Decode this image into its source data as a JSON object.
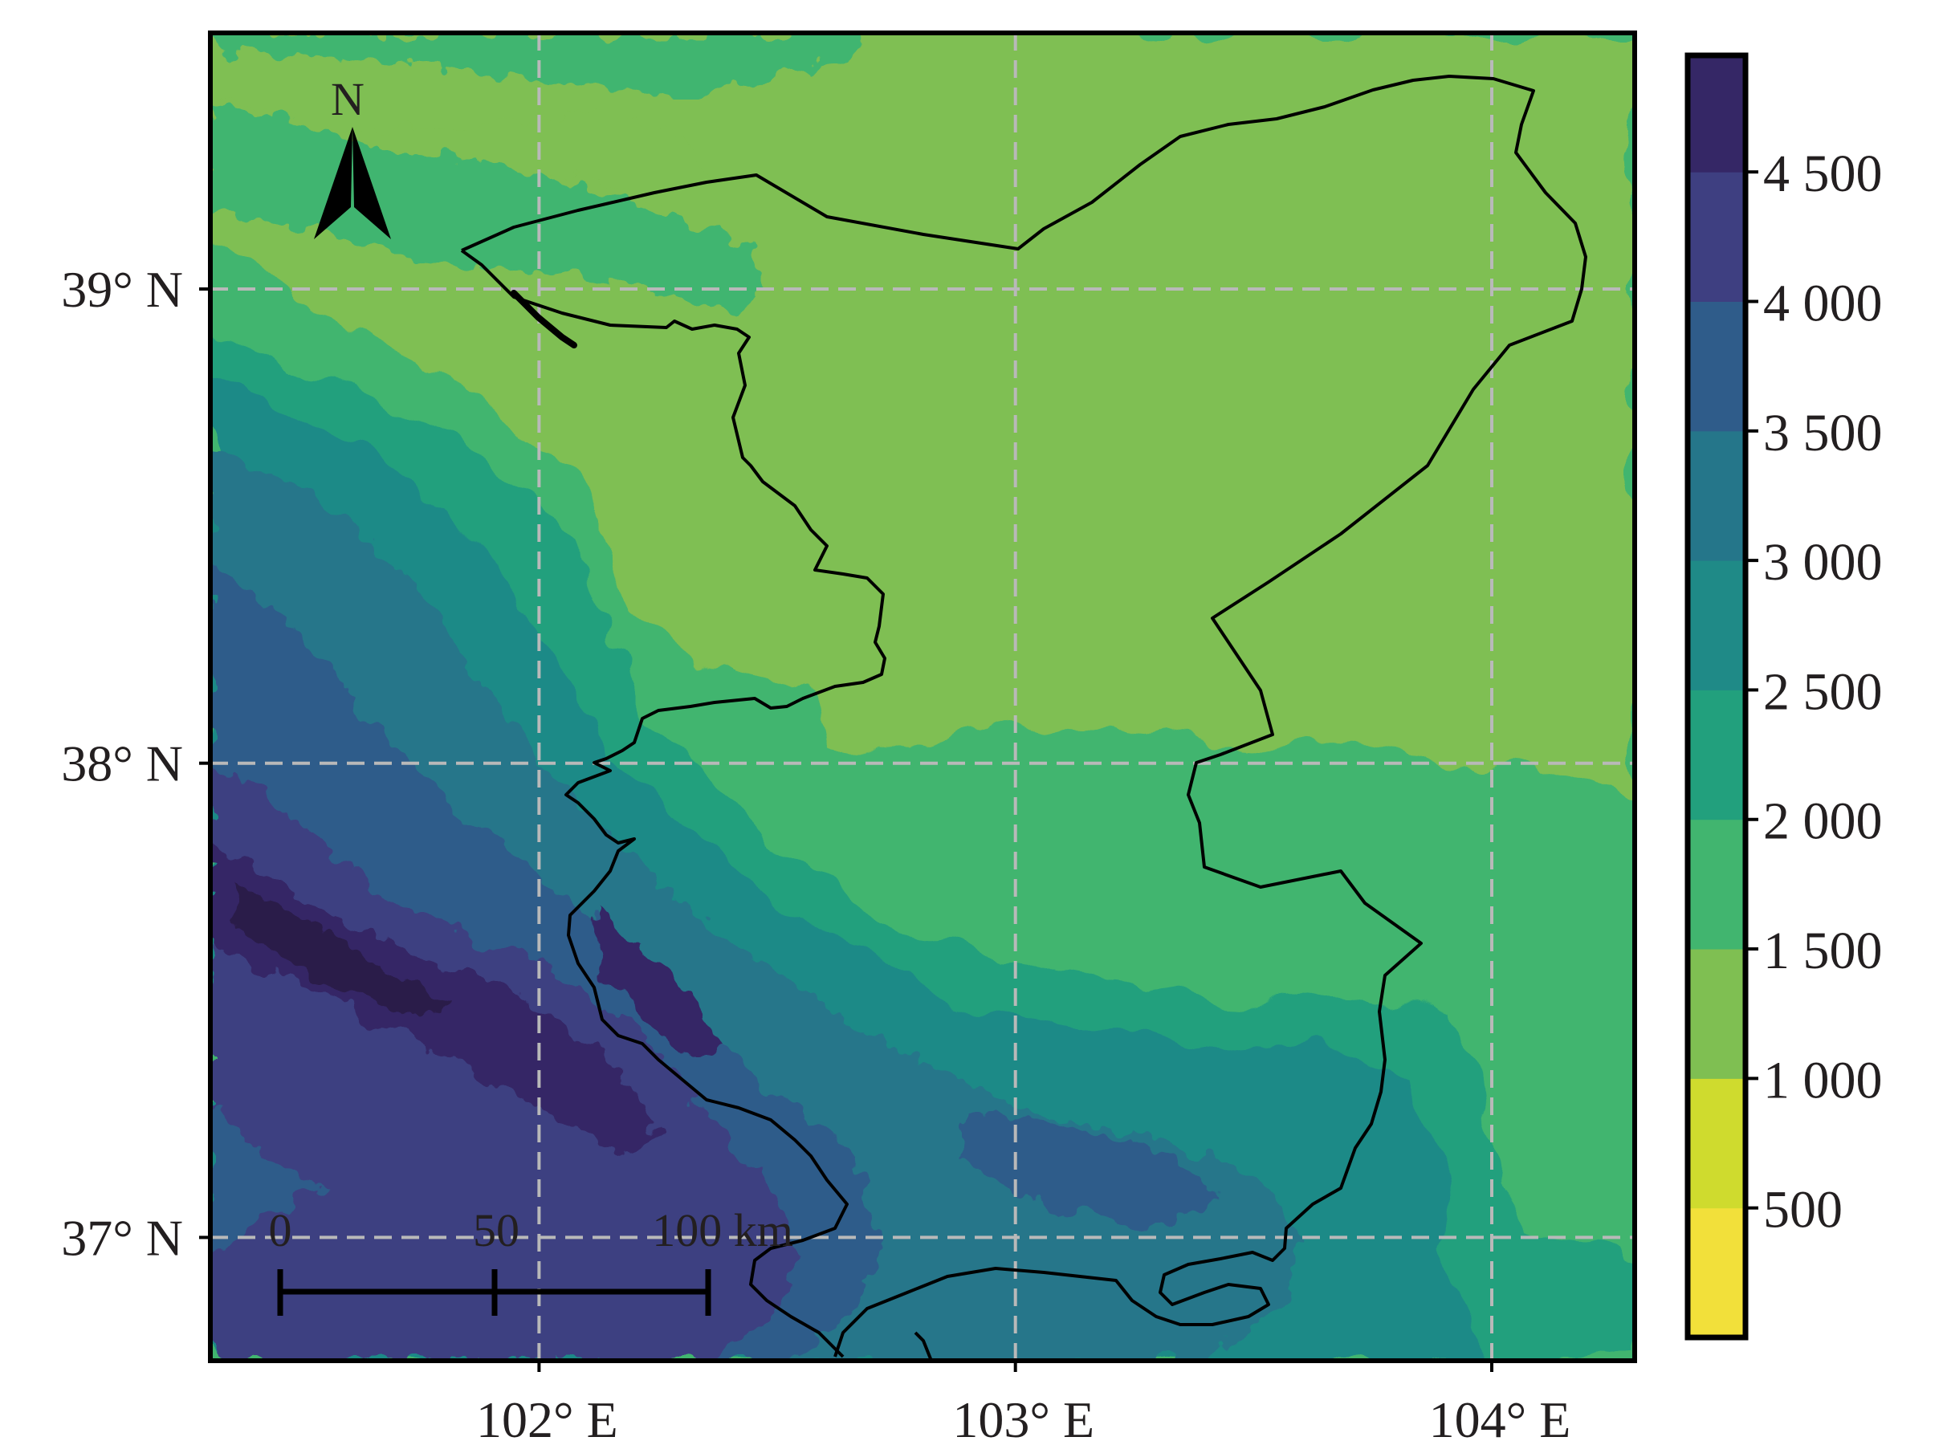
{
  "chart_data": {
    "type": "heatmap",
    "title": "",
    "x_ticks": [
      {
        "value": 102,
        "label": "102° E"
      },
      {
        "value": 103,
        "label": "103° E"
      },
      {
        "value": 104,
        "label": "104° E"
      }
    ],
    "y_ticks": [
      {
        "value": 39,
        "label": "39° N"
      },
      {
        "value": 38,
        "label": "38° N"
      },
      {
        "value": 37,
        "label": "37° N"
      }
    ],
    "xlim": [
      101.31,
      104.3
    ],
    "ylim": [
      36.74,
      39.54
    ],
    "grid": true,
    "colorbar": {
      "position": "right",
      "levels": [
        0,
        500,
        1000,
        1500,
        2000,
        2500,
        3000,
        3500,
        4000,
        4500,
        4950
      ],
      "colors": [
        "#f2e03a",
        "#cfdb2e",
        "#7fbf52",
        "#41b56f",
        "#22a07d",
        "#1f8a87",
        "#25768a",
        "#2f5c8a",
        "#3e3f81",
        "#352766",
        "#2b1c4a"
      ],
      "tick_labels": [
        "500",
        "1 000",
        "1 500",
        "2 000",
        "2 500",
        "3 000",
        "3 500",
        "4 000",
        "4 500"
      ]
    },
    "north_arrow_label": "N",
    "scale_bar": {
      "labels": [
        "0",
        "50",
        "100 km"
      ]
    }
  }
}
